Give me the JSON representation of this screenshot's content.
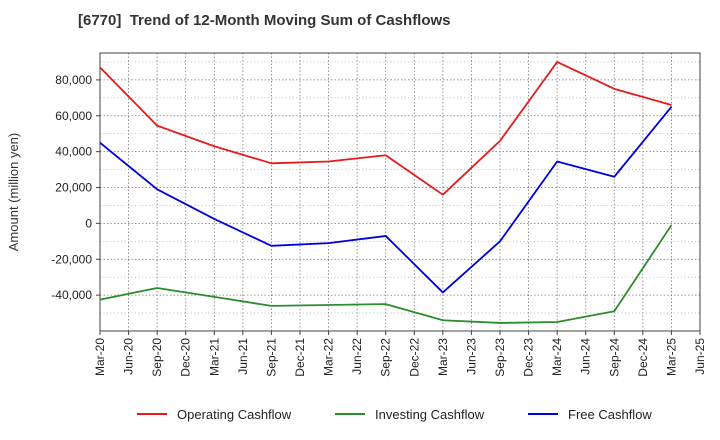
{
  "chart_data": {
    "type": "line",
    "title": "[6770]  Trend of 12-Month Moving Sum of Cashflows",
    "ylabel": "Amount (million yen)",
    "xlabel": "",
    "ylim": [
      -60000,
      95000
    ],
    "yticks": [
      -40000,
      -20000,
      0,
      20000,
      40000,
      60000,
      80000
    ],
    "ytick_labels": [
      "-40,000",
      "-20,000",
      "0",
      "20,000",
      "40,000",
      "60,000",
      "80,000"
    ],
    "categories": [
      "Mar-20",
      "Jun-20",
      "Sep-20",
      "Dec-20",
      "Mar-21",
      "Jun-21",
      "Sep-21",
      "Dec-21",
      "Mar-22",
      "Jun-22",
      "Sep-22",
      "Dec-22",
      "Mar-23",
      "Jun-23",
      "Sep-23",
      "Dec-23",
      "Mar-24",
      "Jun-24",
      "Sep-24",
      "Dec-24",
      "Mar-25",
      "Jun-25"
    ],
    "grid": true,
    "legend_position": "bottom",
    "series": [
      {
        "name": "Operating Cashflow",
        "color": "#e41a1c",
        "x": [
          "Mar-20",
          "Sep-20",
          "Mar-21",
          "Sep-21",
          "Mar-22",
          "Sep-22",
          "Mar-23",
          "Sep-23",
          "Mar-24",
          "Sep-24",
          "Mar-25"
        ],
        "values": [
          87000,
          54500,
          43000,
          33500,
          34500,
          38000,
          16000,
          46000,
          90000,
          75000,
          66000
        ]
      },
      {
        "name": "Investing Cashflow",
        "color": "#2e8b2e",
        "x": [
          "Mar-20",
          "Sep-20",
          "Mar-21",
          "Sep-21",
          "Mar-22",
          "Sep-22",
          "Mar-23",
          "Sep-23",
          "Mar-24",
          "Sep-24",
          "Mar-25"
        ],
        "values": [
          -42500,
          -36000,
          -41000,
          -46000,
          -45500,
          -45000,
          -54000,
          -55500,
          -55000,
          -49000,
          -1000
        ]
      },
      {
        "name": "Free Cashflow",
        "color": "#0000dd",
        "x": [
          "Mar-20",
          "Sep-20",
          "Mar-21",
          "Sep-21",
          "Mar-22",
          "Sep-22",
          "Mar-23",
          "Sep-23",
          "Mar-24",
          "Sep-24",
          "Mar-25"
        ],
        "values": [
          45000,
          19000,
          2500,
          -12500,
          -11000,
          -7000,
          -38500,
          -10000,
          34500,
          26000,
          65000
        ]
      }
    ]
  }
}
